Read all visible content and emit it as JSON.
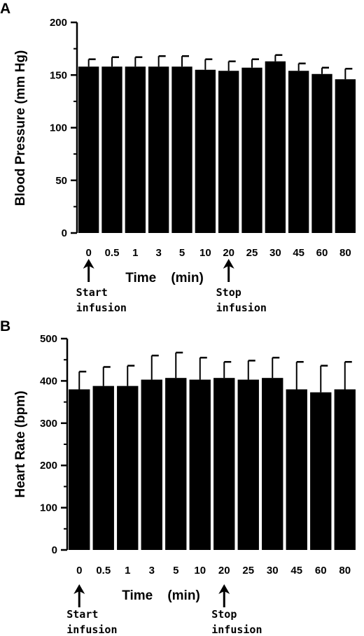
{
  "chart_data": [
    {
      "panel": "A",
      "type": "bar",
      "categories": [
        "0",
        "0.5",
        "1",
        "3",
        "5",
        "10",
        "20",
        "25",
        "30",
        "45",
        "60",
        "80"
      ],
      "values": [
        158,
        158,
        158,
        158,
        158,
        155,
        154,
        157,
        163,
        154,
        151,
        146
      ],
      "errors": [
        7,
        9,
        9,
        10,
        10,
        10,
        9,
        8,
        6,
        7,
        6,
        10
      ],
      "xlabel": "Time (min)",
      "ylabel": "Blood Pressure (mm Hg)",
      "ylim": [
        0,
        200
      ],
      "yticks": [
        0,
        50,
        100,
        150,
        200
      ],
      "annotations": [
        {
          "category": "0",
          "line1": "Start",
          "line2": "infusion"
        },
        {
          "category": "20",
          "line1": "Stop",
          "line2": "infusion"
        }
      ]
    },
    {
      "panel": "B",
      "type": "bar",
      "categories": [
        "0",
        "0.5",
        "1",
        "3",
        "5",
        "10",
        "20",
        "25",
        "30",
        "45",
        "60",
        "80"
      ],
      "values": [
        380,
        388,
        388,
        403,
        407,
        403,
        407,
        403,
        407,
        380,
        373,
        380
      ],
      "errors": [
        42,
        45,
        48,
        57,
        60,
        52,
        38,
        45,
        48,
        65,
        63,
        65
      ],
      "xlabel": "Time (min)",
      "ylabel": "Heart Rate (bpm)",
      "ylim": [
        0,
        500
      ],
      "yticks": [
        0,
        100,
        200,
        300,
        400,
        500
      ],
      "annotations": [
        {
          "category": "0",
          "line1": "Start",
          "line2": "infusion"
        },
        {
          "category": "20",
          "line1": "Stop",
          "line2": "infusion"
        }
      ]
    }
  ]
}
